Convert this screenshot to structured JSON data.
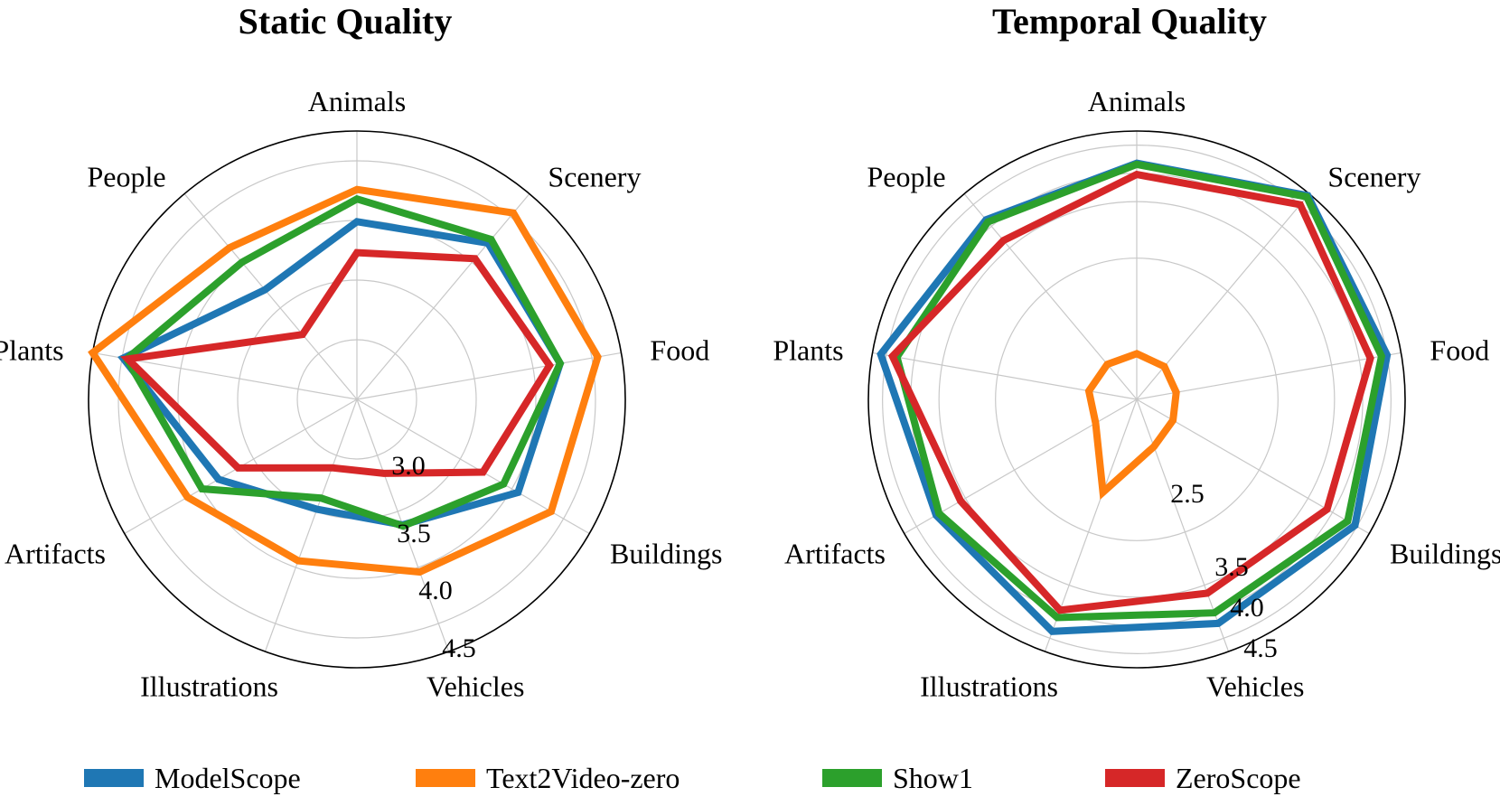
{
  "chart_data": [
    {
      "type": "radar",
      "title": "Static Quality",
      "categories": [
        "Animals",
        "Scenery",
        "Food",
        "Buildings",
        "Vehicles",
        "Illustrations",
        "Artifacts",
        "Plants",
        "People"
      ],
      "range": [
        2.5,
        4.75
      ],
      "ticks": [
        3.0,
        3.5,
        4.0,
        4.5
      ],
      "tick_labels": [
        "3.0",
        "3.5",
        "4.0",
        "4.5"
      ],
      "series": [
        {
          "name": "ModelScope",
          "values": [
            3.99,
            4.21,
            4.23,
            4.06,
            3.62,
            3.48,
            3.84,
            4.49,
            3.7
          ]
        },
        {
          "name": "Text2Video-zero",
          "values": [
            4.26,
            4.54,
            4.55,
            4.38,
            4.04,
            3.94,
            4.14,
            4.75,
            4.16
          ]
        },
        {
          "name": "Show1",
          "values": [
            4.18,
            4.25,
            4.23,
            3.92,
            3.63,
            3.38,
            4.0,
            4.46,
            4.0
          ]
        },
        {
          "name": "ZeroScope",
          "values": [
            3.73,
            4.04,
            4.14,
            3.72,
            3.16,
            3.11,
            3.65,
            4.45,
            3.21
          ]
        }
      ]
    },
    {
      "type": "radar",
      "title": "Temporal Quality",
      "categories": [
        "Animals",
        "Scenery",
        "Food",
        "Buildings",
        "Vehicles",
        "Illustrations",
        "Artifacts",
        "Plants",
        "People"
      ],
      "range": [
        0.0,
        4.75
      ],
      "ticks": [
        2.5,
        3.5,
        4.0,
        4.5
      ],
      "tick_labels": [
        "2.5",
        "3.5",
        "4.0",
        "4.5"
      ],
      "series": [
        {
          "name": "ModelScope",
          "values": [
            4.18,
            4.71,
            4.5,
            4.46,
            4.22,
            4.37,
            4.1,
            4.6,
            4.15
          ]
        },
        {
          "name": "Text2Video-zero",
          "values": [
            0.81,
            0.76,
            0.71,
            0.74,
            0.89,
            1.75,
            0.84,
            0.86,
            0.81
          ]
        },
        {
          "name": "Show1",
          "values": [
            4.16,
            4.68,
            4.4,
            4.31,
            4.02,
            4.11,
            4.04,
            4.31,
            4.1
          ]
        },
        {
          "name": "ZeroScope",
          "values": [
            3.98,
            4.5,
            4.2,
            3.89,
            3.65,
            3.97,
            3.6,
            4.39,
            3.67
          ]
        }
      ]
    }
  ],
  "legend": [
    {
      "name": "ModelScope",
      "color": "#1f77b4"
    },
    {
      "name": "Text2Video-zero",
      "color": "#ff7f0e"
    },
    {
      "name": "Show1",
      "color": "#2ca02c"
    },
    {
      "name": "ZeroScope",
      "color": "#d62728"
    }
  ]
}
